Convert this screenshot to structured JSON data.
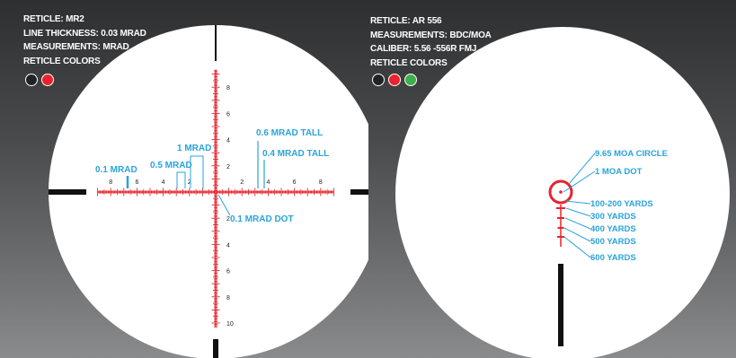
{
  "colors": {
    "reticle_red": "#e8232d",
    "annotation_blue": "#2aa3dc",
    "black": "#111111",
    "white": "#ffffff",
    "green": "#3db04b"
  },
  "left": {
    "specs": [
      "RETICLE: MR2",
      "LINE THICKNESS: 0.03 MRAD",
      "MEASUREMENTS: MRAD",
      "RETICLE COLORS"
    ],
    "reticle_colors": [
      "#222222",
      "#e8232d"
    ],
    "h_ticks_left": [
      "8",
      "6",
      "4",
      "2"
    ],
    "h_ticks_right": [
      "2",
      "4",
      "6",
      "8"
    ],
    "v_ticks_up": [
      "8",
      "6",
      "4",
      "2"
    ],
    "v_ticks_down": [
      "2",
      "4",
      "6",
      "8",
      "10"
    ],
    "annotations": {
      "mrad_0_1": "0.1 MRAD",
      "mrad_0_5": "0.5 MRAD",
      "mrad_1": "1 MRAD",
      "mrad_0_6_tall": "0.6 MRAD TALL",
      "mrad_0_4_tall": "0.4 MRAD TALL",
      "dot": "0.1 MRAD DOT"
    }
  },
  "right": {
    "specs": [
      "RETICLE: AR 556",
      "MEASUREMENTS: BDC/MOA",
      "CALIBER: 5.56 -556R FMJ",
      "RETICLE COLORS"
    ],
    "reticle_colors": [
      "#222222",
      "#e8232d",
      "#3db04b"
    ],
    "annotations": {
      "circle": "9.65 MOA CIRCLE",
      "dot": "1 MOA DOT",
      "yards_100_200": "100-200 YARDS",
      "yards_300": "300 YARDS",
      "yards_400": "400 YARDS",
      "yards_500": "500 YARDS",
      "yards_600": "600 YARDS"
    }
  }
}
